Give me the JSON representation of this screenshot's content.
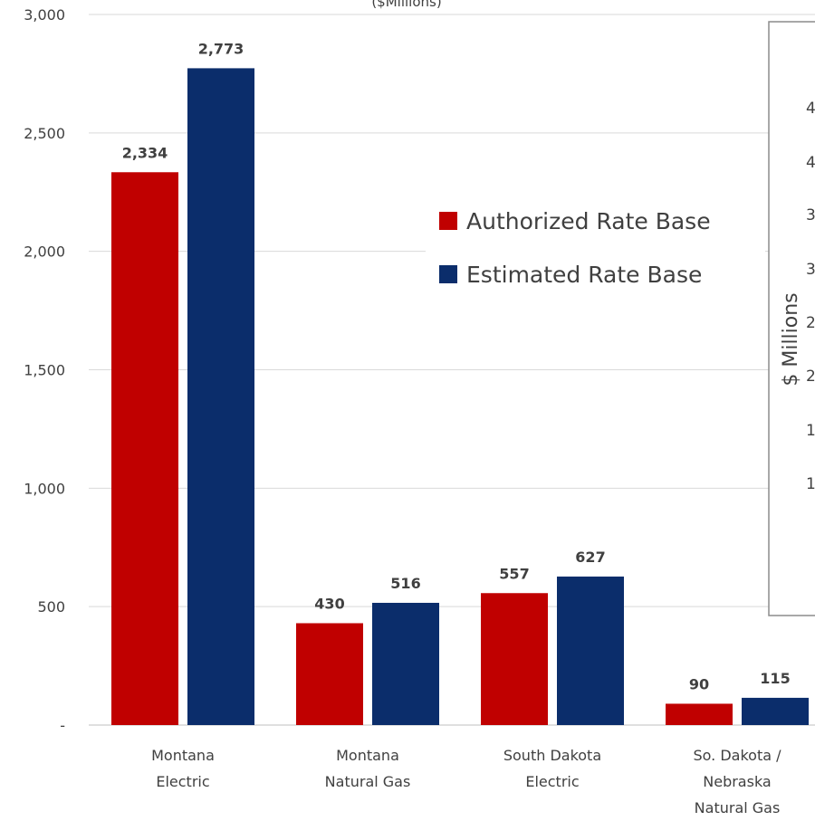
{
  "chart_data": {
    "type": "bar",
    "subtitle": "($Millions)",
    "categories": [
      [
        "Montana",
        "Electric"
      ],
      [
        "Montana",
        "Natural Gas"
      ],
      [
        "South Dakota",
        "Electric"
      ],
      [
        "So. Dakota /",
        "Nebraska",
        "Natural Gas"
      ]
    ],
    "series": [
      {
        "name": "Authorized Rate Base",
        "color": "#c00000",
        "values": [
          2334,
          430,
          557,
          90
        ],
        "labels": [
          "2,334",
          "430",
          "557",
          "90"
        ]
      },
      {
        "name": "Estimated Rate Base",
        "color": "#0b2d6b",
        "values": [
          2773,
          516,
          627,
          115
        ],
        "labels": [
          "2,773",
          "516",
          "627",
          "115"
        ]
      }
    ],
    "ylim": [
      0,
      3000
    ],
    "yticks": [
      0,
      500,
      1000,
      1500,
      2000,
      2500,
      3000
    ],
    "ytick_labels": [
      "-",
      "500",
      "1,000",
      "1,500",
      "2,000",
      "2,500",
      "3,000"
    ],
    "grid": true,
    "legend_position": "upper-right",
    "gridline_color": "#d9d9d9"
  },
  "inset_fragment": {
    "axis_title": "$ Millions",
    "tick_fragments": [
      "4",
      "4",
      "3",
      "3",
      "2",
      "2",
      "1",
      "1"
    ]
  }
}
